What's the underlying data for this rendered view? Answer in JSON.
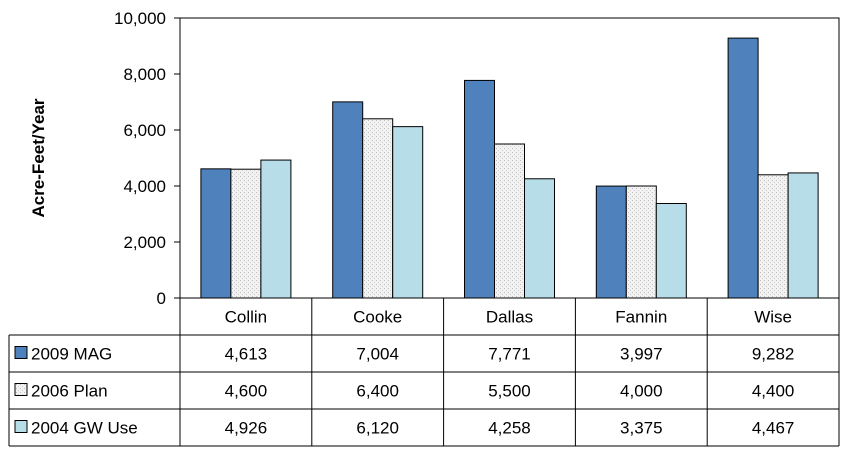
{
  "chart_data": {
    "type": "bar",
    "categories": [
      "Collin",
      "Cooke",
      "Dallas",
      "Fannin",
      "Wise"
    ],
    "series": [
      {
        "name": "2009 MAG",
        "values": [
          4613,
          7004,
          7771,
          3997,
          9282
        ],
        "labels": [
          "4,613",
          "7,004",
          "7,771",
          "3,997",
          "9,282"
        ],
        "color": "#4f81bd",
        "pattern": "solid"
      },
      {
        "name": "2006 Plan",
        "values": [
          4600,
          6400,
          5500,
          4000,
          4400
        ],
        "labels": [
          "4,600",
          "6,400",
          "5,500",
          "4,000",
          "4,400"
        ],
        "color": "#ececec",
        "pattern": "dotted"
      },
      {
        "name": "2004 GW Use",
        "values": [
          4926,
          6120,
          4258,
          3375,
          4467
        ],
        "labels": [
          "4,926",
          "6,120",
          "4,258",
          "3,375",
          "4,467"
        ],
        "color": "#b7dee8",
        "pattern": "solid"
      }
    ],
    "ylabel": "Acre-Feet/Year",
    "ylim": [
      0,
      10000
    ],
    "yticks": [
      0,
      2000,
      4000,
      6000,
      8000,
      10000
    ],
    "ytick_labels": [
      "0",
      "2,000",
      "4,000",
      "6,000",
      "8,000",
      "10,000"
    ],
    "data_table": true,
    "grid": false,
    "legend": "data-table-keys"
  }
}
